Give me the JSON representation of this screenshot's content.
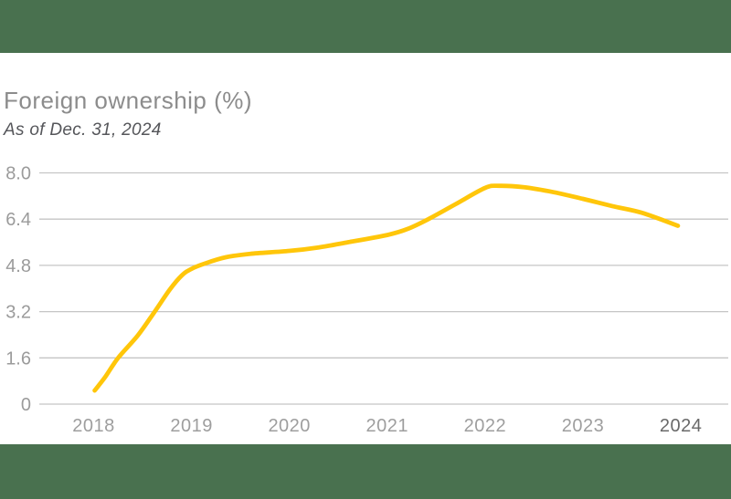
{
  "header": {
    "title": "Foreign ownership (%)",
    "subtitle": "As of Dec. 31, 2024"
  },
  "chart_data": {
    "type": "line",
    "title": "Foreign ownership (%)",
    "subtitle": "As of Dec. 31, 2024",
    "x": [
      2018,
      2019,
      2020,
      2021,
      2022,
      2023,
      2024
    ],
    "x_labels": [
      "2018",
      "2019",
      "2020",
      "2021",
      "2022",
      "2023",
      "2024"
    ],
    "highlighted_x_label": "2024",
    "series": [
      {
        "name": "Foreign ownership",
        "values": [
          0.5,
          4.7,
          5.3,
          5.8,
          7.5,
          7.1,
          6.2
        ],
        "color": "#ffc60a"
      }
    ],
    "ylim": [
      0,
      8
    ],
    "yticks": [
      {
        "value": 0,
        "label": "0"
      },
      {
        "value": 1.6,
        "label": "1.6"
      },
      {
        "value": 3.2,
        "label": "3.2"
      },
      {
        "value": 4.8,
        "label": "4.8"
      },
      {
        "value": 6.4,
        "label": "6.4"
      },
      {
        "value": 8.0,
        "label": "8.0"
      }
    ],
    "xlabel": "",
    "ylabel": "",
    "grid": "horizontal",
    "legend": "none",
    "shape_samples": [
      [
        2018.01,
        0.47
      ],
      [
        2018.12,
        0.95
      ],
      [
        2018.25,
        1.6
      ],
      [
        2018.45,
        2.37
      ],
      [
        2018.62,
        3.18
      ],
      [
        2018.78,
        3.97
      ],
      [
        2018.9,
        4.45
      ],
      [
        2019.0,
        4.68
      ],
      [
        2019.15,
        4.88
      ],
      [
        2019.35,
        5.08
      ],
      [
        2019.6,
        5.2
      ],
      [
        2020.0,
        5.3
      ],
      [
        2020.3,
        5.42
      ],
      [
        2020.6,
        5.6
      ],
      [
        2021.0,
        5.85
      ],
      [
        2021.2,
        6.05
      ],
      [
        2021.42,
        6.4
      ],
      [
        2021.7,
        6.92
      ],
      [
        2022.0,
        7.48
      ],
      [
        2022.15,
        7.55
      ],
      [
        2022.4,
        7.5
      ],
      [
        2022.7,
        7.33
      ],
      [
        2023.0,
        7.1
      ],
      [
        2023.3,
        6.85
      ],
      [
        2023.6,
        6.62
      ],
      [
        2023.97,
        6.17
      ]
    ]
  },
  "style": {
    "band_color": "#49714f",
    "line_color": "#ffc60a",
    "grid_color": "#c5c5c5",
    "y_label_color": "#9b9b9b",
    "x_label_color": "#9e9e9e",
    "x_label_highlight_color": "#696969",
    "title_color": "#8c8c8c",
    "subtitle_color": "#55565a"
  }
}
